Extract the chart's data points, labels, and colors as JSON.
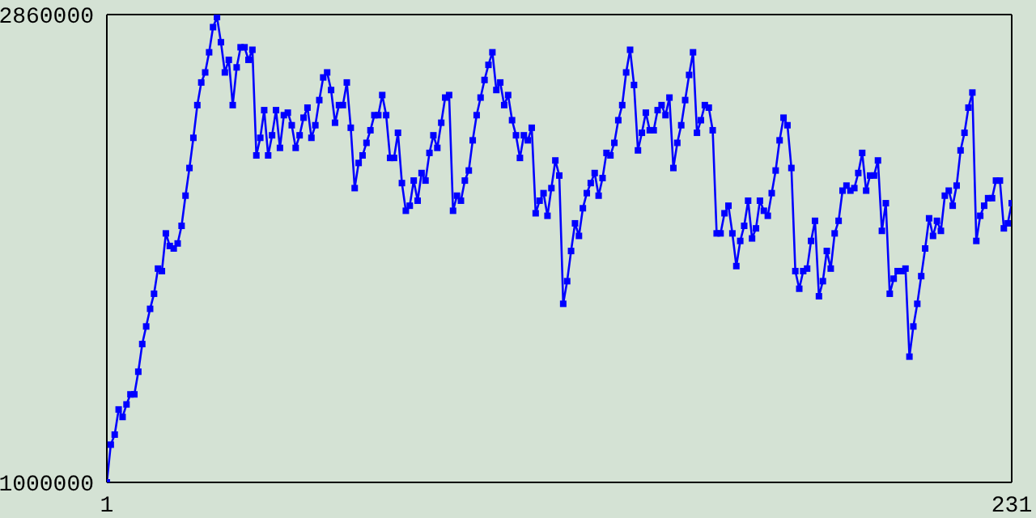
{
  "chart_data": {
    "type": "line",
    "x": [
      1,
      2,
      3,
      4,
      5,
      6,
      7,
      8,
      9,
      10,
      11,
      12,
      13,
      14,
      15,
      16,
      17,
      18,
      19,
      20,
      21,
      22,
      23,
      24,
      25,
      26,
      27,
      28,
      29,
      30,
      31,
      32,
      33,
      34,
      35,
      36,
      37,
      38,
      39,
      40,
      41,
      42,
      43,
      44,
      45,
      46,
      47,
      48,
      49,
      50,
      51,
      52,
      53,
      54,
      55,
      56,
      57,
      58,
      59,
      60,
      61,
      62,
      63,
      64,
      65,
      66,
      67,
      68,
      69,
      70,
      71,
      72,
      73,
      74,
      75,
      76,
      77,
      78,
      79,
      80,
      81,
      82,
      83,
      84,
      85,
      86,
      87,
      88,
      89,
      90,
      91,
      92,
      93,
      94,
      95,
      96,
      97,
      98,
      99,
      100,
      101,
      102,
      103,
      104,
      105,
      106,
      107,
      108,
      109,
      110,
      111,
      112,
      113,
      114,
      115,
      116,
      117,
      118,
      119,
      120,
      121,
      122,
      123,
      124,
      125,
      126,
      127,
      128,
      129,
      130,
      131,
      132,
      133,
      134,
      135,
      136,
      137,
      138,
      139,
      140,
      141,
      142,
      143,
      144,
      145,
      146,
      147,
      148,
      149,
      150,
      151,
      152,
      153,
      154,
      155,
      156,
      157,
      158,
      159,
      160,
      161,
      162,
      163,
      164,
      165,
      166,
      167,
      168,
      169,
      170,
      171,
      172,
      173,
      174,
      175,
      176,
      177,
      178,
      179,
      180,
      181,
      182,
      183,
      184,
      185,
      186,
      187,
      188,
      189,
      190,
      191,
      192,
      193,
      194,
      195,
      196,
      197,
      198,
      199,
      200,
      201,
      202,
      203,
      204,
      205,
      206,
      207,
      208,
      209,
      210,
      211,
      212,
      213,
      214,
      215,
      216,
      217,
      218,
      219,
      220,
      221,
      222,
      223,
      224,
      225,
      226,
      227,
      228,
      229,
      230,
      231
    ],
    "series": [
      {
        "color": "#0000ff",
        "values": [
          1000000,
          1150000,
          1190000,
          1290000,
          1260000,
          1310000,
          1350000,
          1350000,
          1440000,
          1550000,
          1620000,
          1690000,
          1750000,
          1850000,
          1840000,
          1990000,
          1940000,
          1930000,
          1950000,
          2020000,
          2140000,
          2250000,
          2370000,
          2500000,
          2590000,
          2630000,
          2710000,
          2810000,
          2850000,
          2750000,
          2630000,
          2680000,
          2500000,
          2650000,
          2730000,
          2730000,
          2680000,
          2720000,
          2300000,
          2370000,
          2480000,
          2300000,
          2380000,
          2480000,
          2330000,
          2460000,
          2470000,
          2420000,
          2330000,
          2380000,
          2450000,
          2490000,
          2370000,
          2420000,
          2520000,
          2610000,
          2630000,
          2560000,
          2430000,
          2500000,
          2500000,
          2590000,
          2410000,
          2170000,
          2270000,
          2300000,
          2350000,
          2400000,
          2460000,
          2460000,
          2540000,
          2460000,
          2290000,
          2290000,
          2390000,
          2190000,
          2080000,
          2100000,
          2200000,
          2120000,
          2230000,
          2200000,
          2310000,
          2380000,
          2330000,
          2430000,
          2530000,
          2540000,
          2080000,
          2140000,
          2120000,
          2200000,
          2240000,
          2360000,
          2460000,
          2530000,
          2600000,
          2660000,
          2710000,
          2560000,
          2590000,
          2500000,
          2540000,
          2440000,
          2380000,
          2290000,
          2380000,
          2360000,
          2410000,
          2070000,
          2120000,
          2150000,
          2060000,
          2170000,
          2280000,
          2220000,
          1710000,
          1800000,
          1920000,
          2030000,
          1980000,
          2090000,
          2150000,
          2190000,
          2230000,
          2140000,
          2210000,
          2310000,
          2300000,
          2350000,
          2440000,
          2500000,
          2630000,
          2720000,
          2580000,
          2320000,
          2390000,
          2470000,
          2400000,
          2400000,
          2480000,
          2500000,
          2460000,
          2530000,
          2250000,
          2350000,
          2420000,
          2520000,
          2620000,
          2710000,
          2390000,
          2440000,
          2500000,
          2490000,
          2400000,
          1990000,
          1990000,
          2070000,
          2100000,
          1990000,
          1860000,
          1960000,
          2020000,
          2120000,
          1970000,
          2010000,
          2120000,
          2080000,
          2060000,
          2150000,
          2240000,
          2360000,
          2450000,
          2420000,
          2250000,
          1840000,
          1770000,
          1840000,
          1850000,
          1960000,
          2040000,
          1740000,
          1800000,
          1920000,
          1850000,
          1990000,
          2040000,
          2160000,
          2180000,
          2160000,
          2170000,
          2230000,
          2310000,
          2160000,
          2220000,
          2220000,
          2280000,
          2000000,
          2110000,
          1750000,
          1810000,
          1840000,
          1840000,
          1850000,
          1500000,
          1620000,
          1710000,
          1820000,
          1930000,
          2050000,
          1980000,
          2040000,
          2000000,
          2140000,
          2160000,
          2100000,
          2180000,
          2320000,
          2390000,
          2490000,
          2550000,
          1960000,
          2060000,
          2100000,
          2130000,
          2130000,
          2200000,
          2200000,
          2010000,
          2030000,
          2110000
        ]
      }
    ],
    "xlim": [
      1,
      231
    ],
    "xticks": [
      1,
      231
    ],
    "ylim": [
      1000000,
      2860000
    ],
    "yticks": [
      1000000,
      2860000
    ],
    "marker": "square",
    "line_style": "solid"
  }
}
